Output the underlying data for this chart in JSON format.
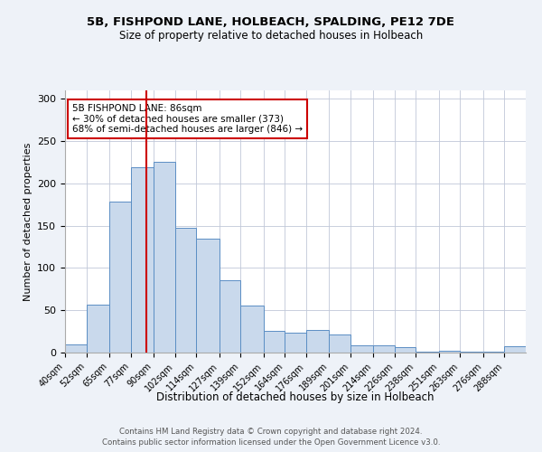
{
  "title1": "5B, FISHPOND LANE, HOLBEACH, SPALDING, PE12 7DE",
  "title2": "Size of property relative to detached houses in Holbeach",
  "xlabel": "Distribution of detached houses by size in Holbeach",
  "ylabel": "Number of detached properties",
  "bin_labels": [
    "40sqm",
    "52sqm",
    "65sqm",
    "77sqm",
    "90sqm",
    "102sqm",
    "114sqm",
    "127sqm",
    "139sqm",
    "152sqm",
    "164sqm",
    "176sqm",
    "189sqm",
    "201sqm",
    "214sqm",
    "226sqm",
    "238sqm",
    "251sqm",
    "263sqm",
    "276sqm",
    "288sqm"
  ],
  "bar_heights": [
    10,
    57,
    179,
    219,
    226,
    148,
    135,
    86,
    56,
    26,
    23,
    27,
    21,
    9,
    9,
    6,
    1,
    2,
    1,
    1,
    8
  ],
  "bar_color": "#c9d9ec",
  "bar_edge_color": "#5b8ec4",
  "property_line_x": 86,
  "bin_edges": [
    40,
    52,
    65,
    77,
    90,
    102,
    114,
    127,
    139,
    152,
    164,
    176,
    189,
    201,
    214,
    226,
    238,
    251,
    263,
    276,
    288
  ],
  "annotation_text": "5B FISHPOND LANE: 86sqm\n← 30% of detached houses are smaller (373)\n68% of semi-detached houses are larger (846) →",
  "annotation_box_color": "#ffffff",
  "annotation_box_edge": "#cc0000",
  "vline_color": "#cc0000",
  "footnote1": "Contains HM Land Registry data © Crown copyright and database right 2024.",
  "footnote2": "Contains public sector information licensed under the Open Government Licence v3.0.",
  "ylim": [
    0,
    310
  ],
  "yticks": [
    0,
    50,
    100,
    150,
    200,
    250,
    300
  ],
  "bg_color": "#eef2f8",
  "plot_bg_color": "#ffffff"
}
